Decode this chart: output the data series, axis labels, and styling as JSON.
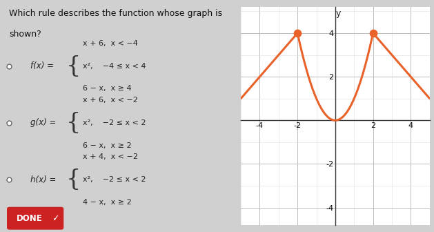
{
  "title_line1": "Which rule describes the function whose graph is",
  "title_line2": "shown?",
  "panel_bg": "#f2f2f2",
  "graph_bg": "#ffffff",
  "outer_bg": "#d0d0d0",
  "curve_color": "#e8622a",
  "curve_linewidth": 2.2,
  "xlim": [
    -5,
    5
  ],
  "ylim": [
    -4.8,
    5.2
  ],
  "xticks": [
    -4,
    -2,
    2,
    4
  ],
  "yticks": [
    -4,
    -2,
    2,
    4
  ],
  "dot_color": "#e8622a",
  "options": [
    {
      "label": "f(x) =",
      "line1": "x + 6,  x < −4",
      "line2": "x²,    −4 ≤ x < 4",
      "line3": "6 − x,  x ≥ 4"
    },
    {
      "label": "g(x) =",
      "line1": "x + 6,  x < −2",
      "line2": "x²,    −2 ≤ x < 2",
      "line3": "6 − x,  x ≥ 2"
    },
    {
      "label": "h(x) =",
      "line1": "x + 4,  x < −2",
      "line2": "x²,    −2 ≤ x < 2",
      "line3": "4 − x,  x ≥ 2"
    }
  ],
  "done_bg": "#cc2222",
  "done_text": "DONE"
}
